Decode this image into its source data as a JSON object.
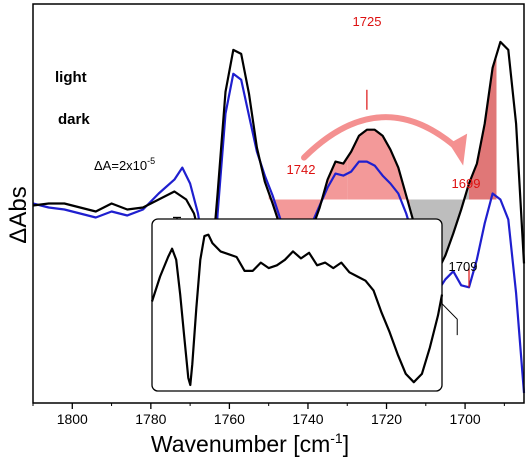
{
  "chart_data": {
    "type": "line",
    "xlabel": "Wavenumber [cm",
    "xlabel_sup": "-1",
    "xlabel_close": "]",
    "ylabel": "ΔAbs",
    "xlim": [
      1810,
      1685
    ],
    "x_reversed": true,
    "ylim": [
      -1.0,
      1.0
    ],
    "x_ticks": [
      1800,
      1780,
      1760,
      1740,
      1720,
      1700
    ],
    "y_ticks_shown": false,
    "scale_bar": {
      "label": "ΔA=2x10",
      "exp": "-5",
      "from": -0.07,
      "to": -0.47
    },
    "series": [
      {
        "name": "light",
        "color": "#000000",
        "points": [
          [
            1810,
            -0.01
          ],
          [
            1806,
            0.0
          ],
          [
            1802,
            0.0
          ],
          [
            1798,
            -0.02
          ],
          [
            1794,
            -0.04
          ],
          [
            1790,
            0.0
          ],
          [
            1786,
            -0.03
          ],
          [
            1782,
            -0.02
          ],
          [
            1778,
            0.02
          ],
          [
            1774,
            0.06
          ],
          [
            1771,
            0.02
          ],
          [
            1769,
            -0.05
          ],
          [
            1767,
            -0.2
          ],
          [
            1765.5,
            -0.4
          ],
          [
            1764.5,
            -0.3
          ],
          [
            1763,
            0.05
          ],
          [
            1761,
            0.56
          ],
          [
            1759,
            0.77
          ],
          [
            1757,
            0.75
          ],
          [
            1755,
            0.55
          ],
          [
            1753,
            0.28
          ],
          [
            1751,
            0.11
          ],
          [
            1749,
            0.0
          ],
          [
            1747,
            -0.12
          ],
          [
            1745,
            -0.17
          ],
          [
            1743,
            -0.22
          ],
          [
            1741,
            -0.2
          ],
          [
            1739,
            -0.13
          ],
          [
            1737,
            -0.02
          ],
          [
            1735,
            0.12
          ],
          [
            1733,
            0.21
          ],
          [
            1731,
            0.2
          ],
          [
            1729,
            0.26
          ],
          [
            1727,
            0.34
          ],
          [
            1725,
            0.37
          ],
          [
            1723,
            0.37
          ],
          [
            1721,
            0.34
          ],
          [
            1719,
            0.27
          ],
          [
            1717,
            0.18
          ],
          [
            1715,
            0.04
          ],
          [
            1713,
            -0.1
          ],
          [
            1711,
            -0.28
          ],
          [
            1709,
            -0.38
          ],
          [
            1707,
            -0.34
          ],
          [
            1705,
            -0.26
          ],
          [
            1703,
            -0.15
          ],
          [
            1701,
            -0.03
          ],
          [
            1699,
            0.1
          ],
          [
            1697,
            0.2
          ],
          [
            1695,
            0.4
          ],
          [
            1693,
            0.68
          ],
          [
            1691,
            0.81
          ],
          [
            1689,
            0.77
          ],
          [
            1687,
            0.4
          ],
          [
            1685,
            -0.3
          ]
        ]
      },
      {
        "name": "dark",
        "color": "#1f1fcf",
        "points": [
          [
            1810,
            0.0
          ],
          [
            1806,
            -0.02
          ],
          [
            1802,
            -0.03
          ],
          [
            1798,
            -0.05
          ],
          [
            1794,
            -0.07
          ],
          [
            1790,
            -0.04
          ],
          [
            1786,
            -0.06
          ],
          [
            1782,
            -0.03
          ],
          [
            1778,
            0.05
          ],
          [
            1774,
            0.12
          ],
          [
            1772,
            0.18
          ],
          [
            1770,
            0.1
          ],
          [
            1768,
            -0.05
          ],
          [
            1766,
            -0.3
          ],
          [
            1765,
            -0.49
          ],
          [
            1764,
            -0.4
          ],
          [
            1763,
            -0.05
          ],
          [
            1761,
            0.45
          ],
          [
            1759,
            0.65
          ],
          [
            1757,
            0.62
          ],
          [
            1755,
            0.44
          ],
          [
            1753,
            0.26
          ],
          [
            1751,
            0.14
          ],
          [
            1749,
            0.04
          ],
          [
            1747,
            -0.08
          ],
          [
            1745,
            -0.15
          ],
          [
            1743,
            -0.17
          ],
          [
            1741,
            -0.17
          ],
          [
            1739,
            -0.1
          ],
          [
            1737,
            -0.01
          ],
          [
            1735,
            0.08
          ],
          [
            1733,
            0.15
          ],
          [
            1731,
            0.14
          ],
          [
            1729,
            0.16
          ],
          [
            1727,
            0.21
          ],
          [
            1725,
            0.21
          ],
          [
            1723,
            0.19
          ],
          [
            1721,
            0.14
          ],
          [
            1719,
            0.1
          ],
          [
            1717,
            0.05
          ],
          [
            1715,
            -0.05
          ],
          [
            1713,
            -0.18
          ],
          [
            1711,
            -0.36
          ],
          [
            1709,
            -0.48
          ],
          [
            1707,
            -0.44
          ],
          [
            1705,
            -0.38
          ],
          [
            1703,
            -0.34
          ],
          [
            1701,
            -0.41
          ],
          [
            1699,
            -0.42
          ],
          [
            1697,
            -0.28
          ],
          [
            1695,
            -0.1
          ],
          [
            1693,
            0.05
          ],
          [
            1691,
            0.02
          ],
          [
            1689,
            -0.08
          ],
          [
            1687,
            -0.45
          ],
          [
            1685,
            -0.95
          ]
        ]
      }
    ],
    "inset": {
      "xlim": [
        1775,
        1703
      ],
      "ylim": [
        -0.6,
        0.55
      ],
      "points": [
        [
          1775,
          0.0
        ],
        [
          1773,
          0.18
        ],
        [
          1771,
          0.32
        ],
        [
          1770,
          0.38
        ],
        [
          1769,
          0.3
        ],
        [
          1768,
          0.05
        ],
        [
          1767,
          -0.25
        ],
        [
          1766,
          -0.55
        ],
        [
          1765.5,
          -0.6
        ],
        [
          1765,
          -0.45
        ],
        [
          1764,
          -0.05
        ],
        [
          1763,
          0.3
        ],
        [
          1762,
          0.47
        ],
        [
          1761,
          0.48
        ],
        [
          1760,
          0.42
        ],
        [
          1758,
          0.36
        ],
        [
          1756,
          0.34
        ],
        [
          1754,
          0.32
        ],
        [
          1752,
          0.22
        ],
        [
          1750,
          0.22
        ],
        [
          1748,
          0.28
        ],
        [
          1746,
          0.24
        ],
        [
          1744,
          0.26
        ],
        [
          1742,
          0.3
        ],
        [
          1740,
          0.36
        ],
        [
          1738,
          0.31
        ],
        [
          1736,
          0.35
        ],
        [
          1734,
          0.26
        ],
        [
          1732,
          0.28
        ],
        [
          1730,
          0.24
        ],
        [
          1728,
          0.28
        ],
        [
          1726,
          0.21
        ],
        [
          1724,
          0.18
        ],
        [
          1722,
          0.15
        ],
        [
          1720,
          0.08
        ],
        [
          1718,
          -0.08
        ],
        [
          1716,
          -0.22
        ],
        [
          1714,
          -0.38
        ],
        [
          1712,
          -0.52
        ],
        [
          1710,
          -0.58
        ],
        [
          1708,
          -0.52
        ],
        [
          1706,
          -0.33
        ],
        [
          1704,
          -0.1
        ],
        [
          1703,
          0.05
        ]
      ]
    },
    "series_labels": [
      "light",
      "dark"
    ],
    "fill_regions": [
      {
        "from": 1750,
        "to": 1730,
        "baseline": 0.02,
        "color": "#f08080",
        "opacity": 0.8
      },
      {
        "from": 1730,
        "to": 1714,
        "baseline": 0.02,
        "color": "#f08080",
        "opacity": 0.8
      },
      {
        "from": 1714,
        "to": 1699,
        "baseline": 0.02,
        "color": "#9a9a9a",
        "opacity": 0.65
      },
      {
        "from": 1699,
        "to": 1692,
        "baseline": 0.02,
        "color": "#d64a4a",
        "opacity": 0.75
      }
    ],
    "annotations": [
      {
        "text": "1725",
        "x": 1725,
        "color": "#dd1111"
      },
      {
        "text": "1742",
        "x": 1742,
        "color": "#dd1111"
      },
      {
        "text": "1699",
        "x": 1699,
        "color": "#dd1111"
      },
      {
        "text": "1709",
        "x": 1709,
        "color": "#000000"
      }
    ],
    "arrow": {
      "from": 1741,
      "to": 1701,
      "color": "#f49090"
    }
  }
}
